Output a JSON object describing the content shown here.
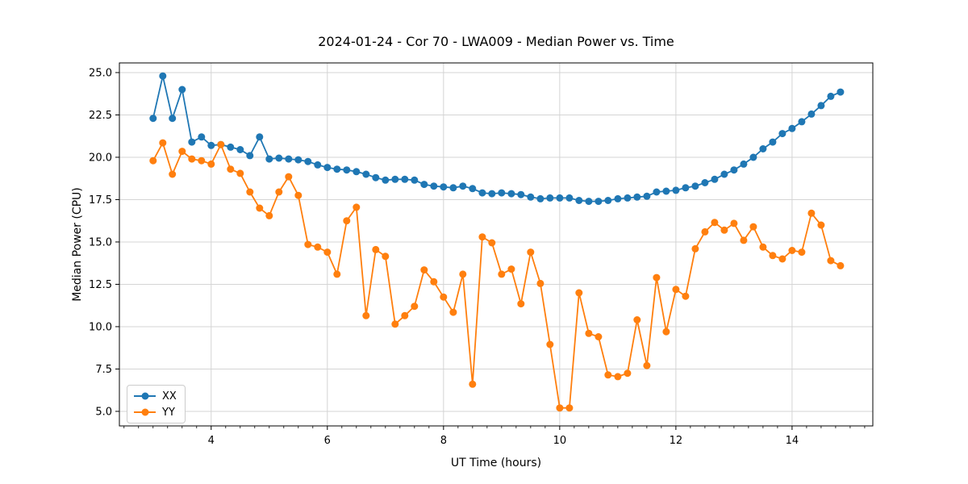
{
  "title": "2024-01-24 - Cor 70 - LWA009 - Median Power vs. Time",
  "chart_data": {
    "type": "line",
    "title": "2024-01-24 - Cor 70 - LWA009 - Median Power vs. Time",
    "xlabel": "UT Time (hours)",
    "ylabel": "Median Power (CPU)",
    "xlim": [
      2.42,
      15.39
    ],
    "ylim": [
      4.14,
      25.57
    ],
    "grid": true,
    "legend_location": "lower left",
    "x_ticks": [
      4,
      6,
      8,
      10,
      12,
      14
    ],
    "x_tick_labels": [
      "4",
      "6",
      "8",
      "10",
      "12",
      "14"
    ],
    "x_minor_tick_step": 0.25,
    "x_minor_tick_start": 2.5,
    "x_minor_tick_end": 15.25,
    "y_ticks": [
      5.0,
      7.5,
      10.0,
      12.5,
      15.0,
      17.5,
      20.0,
      22.5,
      25.0
    ],
    "y_tick_labels": [
      "5.0",
      "7.5",
      "10.0",
      "12.5",
      "15.0",
      "17.5",
      "20.0",
      "22.5",
      "25.0"
    ],
    "x": [
      3.0,
      3.167,
      3.333,
      3.5,
      3.667,
      3.833,
      4.0,
      4.167,
      4.333,
      4.5,
      4.667,
      4.833,
      5.0,
      5.167,
      5.333,
      5.5,
      5.667,
      5.833,
      6.0,
      6.167,
      6.333,
      6.5,
      6.667,
      6.833,
      7.0,
      7.167,
      7.333,
      7.5,
      7.667,
      7.833,
      8.0,
      8.167,
      8.333,
      8.5,
      8.667,
      8.833,
      9.0,
      9.167,
      9.333,
      9.5,
      9.667,
      9.833,
      10.0,
      10.167,
      10.333,
      10.5,
      10.667,
      10.833,
      11.0,
      11.167,
      11.333,
      11.5,
      11.667,
      11.833,
      12.0,
      12.167,
      12.333,
      12.5,
      12.667,
      12.833,
      13.0,
      13.167,
      13.333,
      13.5,
      13.667,
      13.833,
      14.0,
      14.167,
      14.333,
      14.5,
      14.667,
      14.833
    ],
    "series": [
      {
        "name": "XX",
        "color": "#1f77b4",
        "values": [
          22.3,
          24.8,
          22.3,
          24.0,
          20.9,
          21.2,
          20.7,
          20.75,
          20.6,
          20.45,
          20.1,
          21.2,
          19.9,
          19.95,
          19.9,
          19.85,
          19.75,
          19.55,
          19.4,
          19.3,
          19.25,
          19.15,
          19.0,
          18.8,
          18.65,
          18.7,
          18.7,
          18.65,
          18.4,
          18.3,
          18.25,
          18.2,
          18.3,
          18.15,
          17.9,
          17.85,
          17.9,
          17.85,
          17.8,
          17.65,
          17.55,
          17.6,
          17.6,
          17.6,
          17.45,
          17.4,
          17.4,
          17.45,
          17.55,
          17.6,
          17.65,
          17.7,
          17.95,
          18.0,
          18.05,
          18.2,
          18.3,
          18.5,
          18.7,
          19.0,
          19.25,
          19.6,
          20.0,
          20.5,
          20.9,
          21.4,
          21.7,
          22.1,
          22.55,
          23.05,
          23.6,
          23.85
        ]
      },
      {
        "name": "YY",
        "color": "#ff7f0e",
        "values": [
          19.8,
          20.85,
          19.0,
          20.35,
          19.9,
          19.8,
          19.6,
          20.75,
          19.3,
          19.05,
          17.95,
          17.0,
          16.55,
          17.95,
          18.85,
          17.75,
          14.85,
          14.7,
          14.4,
          13.1,
          16.25,
          17.05,
          10.65,
          14.55,
          14.15,
          10.15,
          10.65,
          11.2,
          13.35,
          12.65,
          11.75,
          10.85,
          13.1,
          6.6,
          15.3,
          14.95,
          13.1,
          13.4,
          11.35,
          14.4,
          12.55,
          8.95,
          5.2,
          5.2,
          12.0,
          9.6,
          9.4,
          7.15,
          7.05,
          7.25,
          10.4,
          7.7,
          12.9,
          9.7,
          12.2,
          11.8,
          14.6,
          15.6,
          16.15,
          15.7,
          16.1,
          15.1,
          15.9,
          14.7,
          14.2,
          14.0,
          14.5,
          14.4,
          16.7,
          16.0,
          13.9,
          13.6
        ]
      }
    ]
  }
}
